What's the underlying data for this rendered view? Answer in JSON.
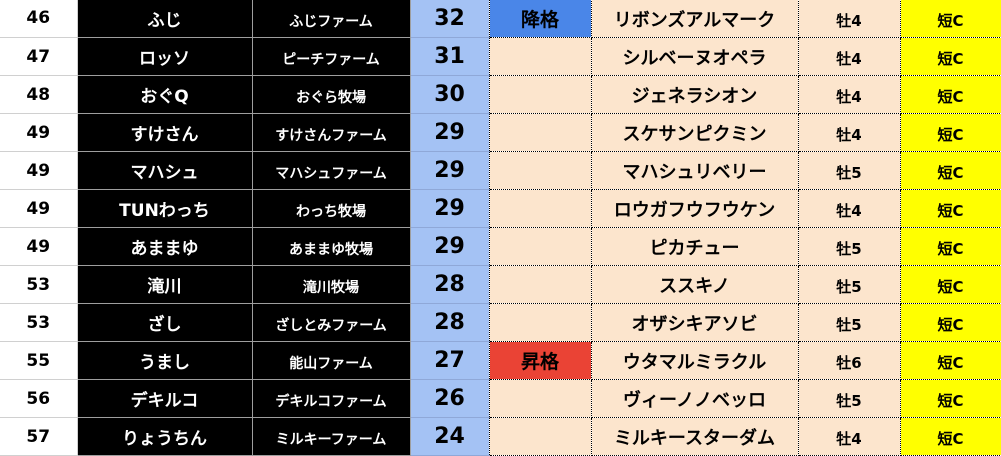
{
  "colors": {
    "score_bg": "#a4c2f4",
    "peach": "#fce5cd",
    "class_bg": "#ffff00",
    "relegation": "#4a86e8",
    "promotion": "#ea4335"
  },
  "rows": [
    {
      "rank": "46",
      "name": "ふじ",
      "farm": "ふじファーム",
      "score": "32",
      "badge": "降格",
      "badge_type": "down",
      "horse": "リボンズアルマーク",
      "sex_age": "牡4",
      "class": "短C"
    },
    {
      "rank": "47",
      "name": "ロッソ",
      "farm": "ピーチファーム",
      "score": "31",
      "badge": "",
      "badge_type": "",
      "horse": "シルベーヌオペラ",
      "sex_age": "牡4",
      "class": "短C"
    },
    {
      "rank": "48",
      "name": "おぐQ",
      "farm": "おぐら牧場",
      "score": "30",
      "badge": "",
      "badge_type": "",
      "horse": "ジェネラシオン",
      "sex_age": "牡4",
      "class": "短C"
    },
    {
      "rank": "49",
      "name": "すけさん",
      "farm": "すけさんファーム",
      "score": "29",
      "badge": "",
      "badge_type": "",
      "horse": "スケサンピクミン",
      "sex_age": "牡4",
      "class": "短C"
    },
    {
      "rank": "49",
      "name": "マハシュ",
      "farm": "マハシュファーム",
      "score": "29",
      "badge": "",
      "badge_type": "",
      "horse": "マハシュリベリー",
      "sex_age": "牡5",
      "class": "短C"
    },
    {
      "rank": "49",
      "name": "TUNわっち",
      "farm": "わっち牧場",
      "score": "29",
      "badge": "",
      "badge_type": "",
      "horse": "ロウガフウフウケン",
      "sex_age": "牡4",
      "class": "短C"
    },
    {
      "rank": "49",
      "name": "あままゆ",
      "farm": "あままゆ牧場",
      "score": "29",
      "badge": "",
      "badge_type": "",
      "horse": "ピカチュー",
      "sex_age": "牡5",
      "class": "短C"
    },
    {
      "rank": "53",
      "name": "滝川",
      "farm": "滝川牧場",
      "score": "28",
      "badge": "",
      "badge_type": "",
      "horse": "ススキノ",
      "sex_age": "牡5",
      "class": "短C"
    },
    {
      "rank": "53",
      "name": "ざし",
      "farm": "ざしとみファーム",
      "score": "28",
      "badge": "",
      "badge_type": "",
      "horse": "オザシキアソビ",
      "sex_age": "牡5",
      "class": "短C"
    },
    {
      "rank": "55",
      "name": "うまし",
      "farm": "能山ファーム",
      "score": "27",
      "badge": "昇格",
      "badge_type": "up",
      "horse": "ウタマルミラクル",
      "sex_age": "牡6",
      "class": "短C"
    },
    {
      "rank": "56",
      "name": "デキルコ",
      "farm": "デキルコファーム",
      "score": "26",
      "badge": "",
      "badge_type": "",
      "horse": "ヴィーノノベッロ",
      "sex_age": "牡5",
      "class": "短C"
    },
    {
      "rank": "57",
      "name": "りょうちん",
      "farm": "ミルキーファーム",
      "score": "24",
      "badge": "",
      "badge_type": "",
      "horse": "ミルキースターダム",
      "sex_age": "牡4",
      "class": "短C"
    }
  ]
}
